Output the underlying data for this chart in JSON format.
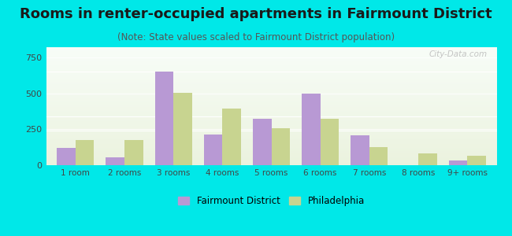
{
  "categories": [
    "1 room",
    "2 rooms",
    "3 rooms",
    "4 rooms",
    "5 rooms",
    "6 rooms",
    "7 rooms",
    "8 rooms",
    "9+ rooms"
  ],
  "fairmount": [
    120,
    55,
    650,
    215,
    320,
    495,
    210,
    0,
    35
  ],
  "philadelphia": [
    175,
    175,
    505,
    395,
    255,
    320,
    125,
    80,
    65
  ],
  "fairmount_color": "#b899d4",
  "philadelphia_color": "#c8d490",
  "title": "Rooms in renter-occupied apartments in Fairmount District",
  "subtitle": "(Note: State values scaled to Fairmount District population)",
  "yticks": [
    0,
    250,
    500,
    750
  ],
  "ylim": [
    0,
    820
  ],
  "background_outer": "#00e8e8",
  "watermark": "City-Data.com",
  "legend_labels": [
    "Fairmount District",
    "Philadelphia"
  ],
  "bar_width": 0.38,
  "title_fontsize": 13,
  "subtitle_fontsize": 8.5
}
